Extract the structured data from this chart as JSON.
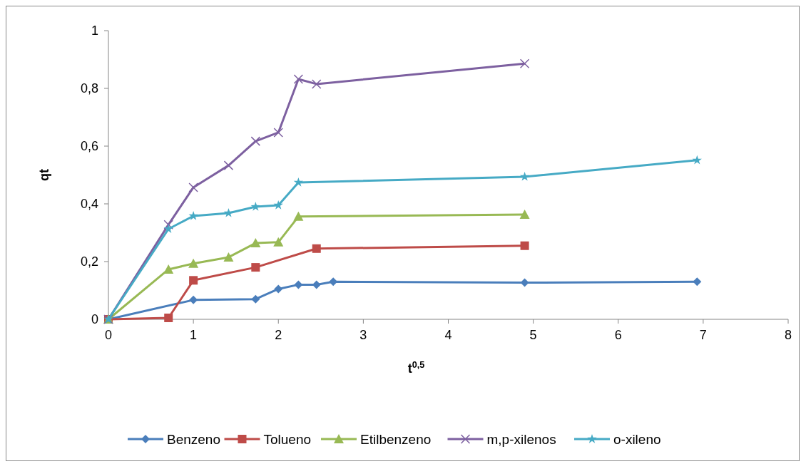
{
  "chart_data": {
    "type": "line",
    "xlabel": "t$^{0,5}$",
    "ylabel": "qt",
    "xlim": [
      0,
      8
    ],
    "xticks": [
      0,
      1,
      2,
      3,
      4,
      5,
      6,
      7,
      8
    ],
    "ylim": [
      0,
      1
    ],
    "yticks": [
      0,
      {
        "value": 0.2,
        "label": "0,2"
      },
      {
        "value": 0.4,
        "label": "0,4"
      },
      {
        "value": 0.6,
        "label": "0,6"
      },
      {
        "value": 0.8,
        "label": "0,8"
      },
      1
    ],
    "grid": false,
    "legend": "bottom",
    "series": [
      {
        "name": "Benzeno",
        "color": "#4a7ebb",
        "marker": "diamond",
        "x": [
          0,
          1,
          1.732,
          2,
          2.236,
          2.449,
          2.646,
          4.899,
          6.928
        ],
        "values": [
          0,
          0.067,
          0.07,
          0.105,
          0.12,
          0.12,
          0.13,
          0.127,
          0.13
        ]
      },
      {
        "name": "Tolueno",
        "color": "#be4b48",
        "marker": "square",
        "x": [
          0,
          0.707,
          1,
          1.732,
          2.449,
          4.899
        ],
        "values": [
          0,
          0.005,
          0.135,
          0.18,
          0.245,
          0.255
        ]
      },
      {
        "name": "Etilbenzeno",
        "color": "#98b954",
        "marker": "triangle",
        "x": [
          0,
          0.707,
          1,
          1.414,
          1.732,
          2,
          2.236,
          4.899
        ],
        "values": [
          0,
          0.173,
          0.193,
          0.215,
          0.264,
          0.267,
          0.356,
          0.363
        ]
      },
      {
        "name": "m,p-xilenos",
        "color": "#7d60a0",
        "marker": "cross",
        "x": [
          0,
          0.707,
          1,
          1.414,
          1.732,
          2,
          2.236,
          2.449,
          4.899
        ],
        "values": [
          0,
          0.328,
          0.457,
          0.533,
          0.617,
          0.647,
          0.832,
          0.815,
          0.886
        ]
      },
      {
        "name": "o-xileno",
        "color": "#46aac5",
        "marker": "star",
        "x": [
          0,
          0.707,
          1,
          1.414,
          1.732,
          2,
          2.236,
          4.899,
          6.928
        ],
        "values": [
          0,
          0.313,
          0.358,
          0.368,
          0.39,
          0.395,
          0.474,
          0.494,
          0.551
        ]
      }
    ]
  }
}
